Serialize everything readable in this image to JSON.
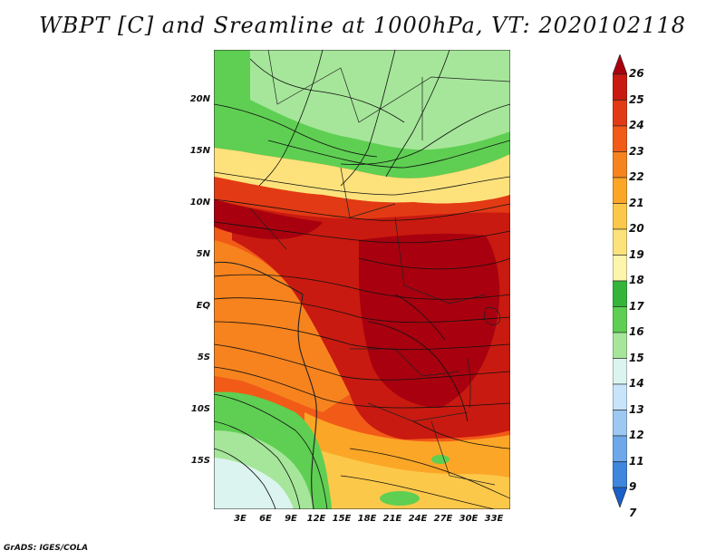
{
  "title": "WBPT [C] and Sreamline at 1000hPa, VT: 2020102118",
  "credit": "GrADS: IGES/COLA",
  "map": {
    "lat_labels": [
      "20N",
      "15N",
      "10N",
      "5N",
      "EQ",
      "5S",
      "10S",
      "15S"
    ],
    "lon_labels": [
      "3E",
      "6E",
      "9E",
      "12E",
      "15E",
      "18E",
      "21E",
      "24E",
      "27E",
      "30E",
      "33E"
    ],
    "field": "WBPT",
    "field_unit": "C"
  },
  "colorbar": {
    "labels": [
      "26",
      "25",
      "24",
      "23",
      "22",
      "21",
      "20",
      "19",
      "18",
      "17",
      "16",
      "15",
      "14",
      "13",
      "12",
      "11",
      "9",
      "7"
    ],
    "colors": [
      "#a8000e",
      "#c81a10",
      "#e23a14",
      "#f25a18",
      "#f7831e",
      "#fba626",
      "#fcc84a",
      "#fde27c",
      "#fdf4ae",
      "#34b53a",
      "#5ecf52",
      "#a6e69a",
      "#dcf4ef",
      "#c8e4fa",
      "#9cc8f2",
      "#6ea8ea",
      "#3e86de",
      "#1a60c8"
    ]
  }
}
